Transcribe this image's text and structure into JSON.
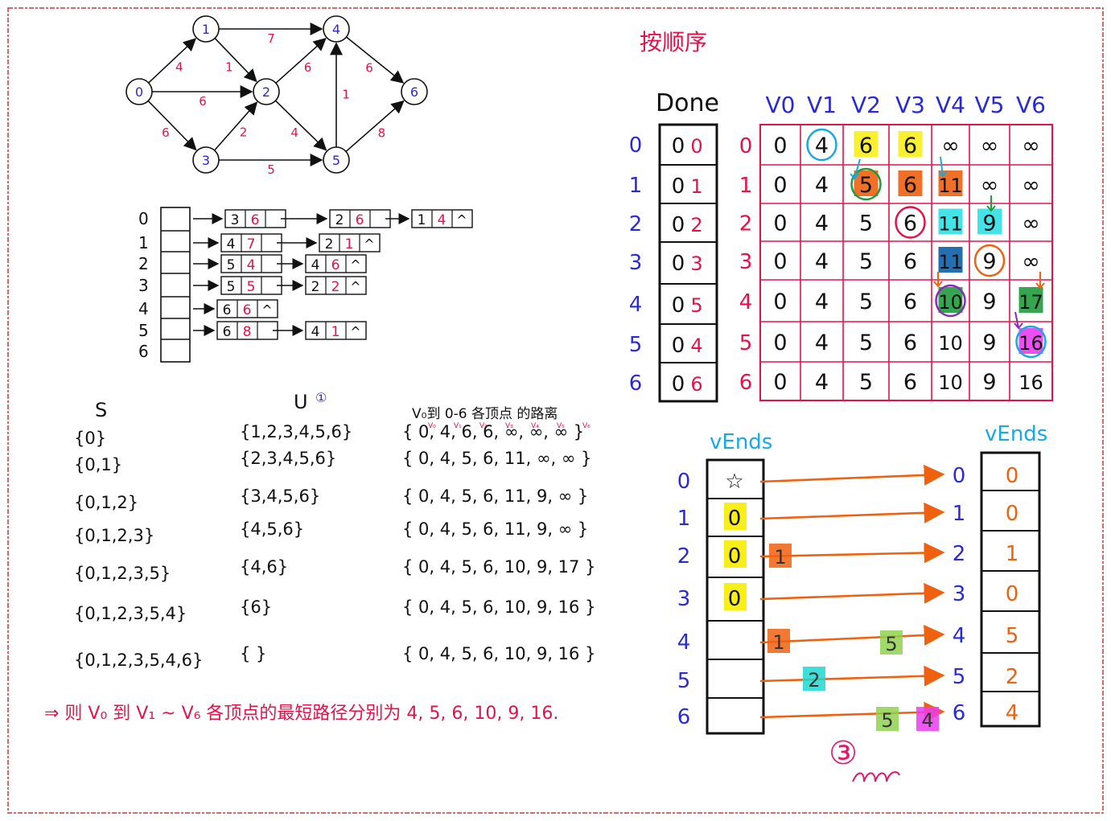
{
  "title": "按顺序",
  "graph": {
    "nodes": [
      "0",
      "1",
      "2",
      "3",
      "4",
      "5",
      "6"
    ],
    "edges": [
      {
        "from": "0",
        "to": "1",
        "w": "4"
      },
      {
        "from": "0",
        "to": "2",
        "w": "6"
      },
      {
        "from": "0",
        "to": "3",
        "w": "6"
      },
      {
        "from": "1",
        "to": "4",
        "w": "7"
      },
      {
        "from": "1",
        "to": "2",
        "w": "1"
      },
      {
        "from": "2",
        "to": "4",
        "w": "6"
      },
      {
        "from": "2",
        "to": "5",
        "w": "4"
      },
      {
        "from": "3",
        "to": "2",
        "w": "2"
      },
      {
        "from": "3",
        "to": "5",
        "w": "5"
      },
      {
        "from": "5",
        "to": "4",
        "w": "1"
      },
      {
        "from": "4",
        "to": "6",
        "w": "6"
      },
      {
        "from": "5",
        "to": "6",
        "w": "8"
      }
    ]
  },
  "adjacency": {
    "rows": [
      {
        "label": "0",
        "nodes": [
          [
            "3",
            "6"
          ],
          [
            "2",
            "6"
          ],
          [
            "1",
            "4"
          ]
        ]
      },
      {
        "label": "1",
        "nodes": [
          [
            "4",
            "7"
          ],
          [
            "2",
            "1"
          ]
        ]
      },
      {
        "label": "2",
        "nodes": [
          [
            "5",
            "4"
          ],
          [
            "4",
            "6"
          ]
        ]
      },
      {
        "label": "3",
        "nodes": [
          [
            "5",
            "5"
          ],
          [
            "2",
            "2"
          ]
        ]
      },
      {
        "label": "4",
        "nodes": [
          [
            "6",
            "6"
          ]
        ]
      },
      {
        "label": "5",
        "nodes": [
          [
            "6",
            "8"
          ],
          [
            "4",
            "1"
          ]
        ]
      },
      {
        "label": "6",
        "nodes": []
      }
    ],
    "null_mark": "^"
  },
  "done": {
    "header": "Done",
    "rows": [
      [
        "0",
        "0"
      ],
      [
        "0",
        "1"
      ],
      [
        "0",
        "2"
      ],
      [
        "0",
        "3"
      ],
      [
        "0",
        "5"
      ],
      [
        "0",
        "4"
      ],
      [
        "0",
        "6"
      ]
    ],
    "labels": [
      "0",
      "1",
      "2",
      "3",
      "4",
      "5",
      "6"
    ]
  },
  "dist_table": {
    "headers": [
      "V0",
      "V1",
      "V2",
      "V3",
      "V4",
      "V5",
      "V6"
    ],
    "row_labels": [
      "0",
      "1",
      "2",
      "3",
      "4",
      "5",
      "6"
    ],
    "rows": [
      [
        "0",
        "4",
        "6",
        "6",
        "∞",
        "∞",
        "∞"
      ],
      [
        "0",
        "4",
        "5",
        "6",
        "11",
        "∞",
        "∞"
      ],
      [
        "0",
        "4",
        "5",
        "6",
        "11",
        "9",
        "∞"
      ],
      [
        "0",
        "4",
        "5",
        "6",
        "11",
        "9",
        "∞"
      ],
      [
        "0",
        "4",
        "5",
        "6",
        "10",
        "9",
        "17"
      ],
      [
        "0",
        "4",
        "5",
        "6",
        "10",
        "9",
        "16"
      ],
      [
        "0",
        "4",
        "5",
        "6",
        "10",
        "9",
        "16"
      ]
    ]
  },
  "sets": {
    "s_header": "S",
    "u_header": "U",
    "u_note": "①",
    "dist_header": "V₀到 0-6 各顶点 的路离",
    "dist_sub": [
      "V₀",
      "V₁",
      "V₂",
      "V₃",
      "V₄",
      "V₅",
      "V₆"
    ],
    "s_rows": [
      "{0}",
      "{0,1}",
      "{0,1,2}",
      "{0,1,2,3}",
      "{0,1,2,3,5}",
      "{0,1,2,3,5,4}",
      "{0,1,2,3,5,4,6}"
    ],
    "u_rows": [
      "{1,2,3,4,5,6}",
      "{2,3,4,5,6}",
      "{3,4,5,6}",
      "{4,5,6}",
      "{4,6}",
      "{6}",
      "{ }"
    ],
    "dist_rows": [
      "{ 0, 4, 6, 6, ∞, ∞, ∞ }",
      "{ 0, 4, 5, 6, 11, ∞, ∞ }",
      "{ 0, 4, 5, 6, 11, 9, ∞ }",
      "{ 0, 4, 5, 6, 11, 9, ∞ }",
      "{ 0, 4, 5, 6, 10, 9, 17 }",
      "{ 0, 4, 5, 6, 10, 9, 16 }",
      "{ 0, 4, 5, 6, 10, 9, 16 }"
    ]
  },
  "conclusion": "⇒  则 V₀ 到 V₁ ~ V₆ 各顶点的最短路径分别为 4, 5, 6, 10, 9, 16.",
  "vends": {
    "left_header": "vEnds",
    "right_header": "vEnds",
    "labels": [
      "0",
      "1",
      "2",
      "3",
      "4",
      "5",
      "6"
    ],
    "left_vals": [
      "☆",
      "0",
      "0",
      "0",
      "",
      "",
      ""
    ],
    "right_vals": [
      "0",
      "0",
      "1",
      "0",
      "5",
      "2",
      "4"
    ],
    "overwrites": [
      {
        "row": "2",
        "val": "1"
      },
      {
        "row": "4",
        "val": "1"
      },
      {
        "row": "4",
        "val": "5"
      },
      {
        "row": "5",
        "val": "2"
      },
      {
        "row": "6",
        "val": "5"
      },
      {
        "row": "6",
        "val": "4"
      }
    ],
    "step_mark": "③"
  },
  "colors": {
    "red": "#e3134a",
    "blue": "#2b2bd6",
    "sky": "#1aa8e0",
    "orange": "#f0610f",
    "yellow": "#f7ee1a",
    "green": "#1f9b3c",
    "purple": "#8b2bb3"
  }
}
